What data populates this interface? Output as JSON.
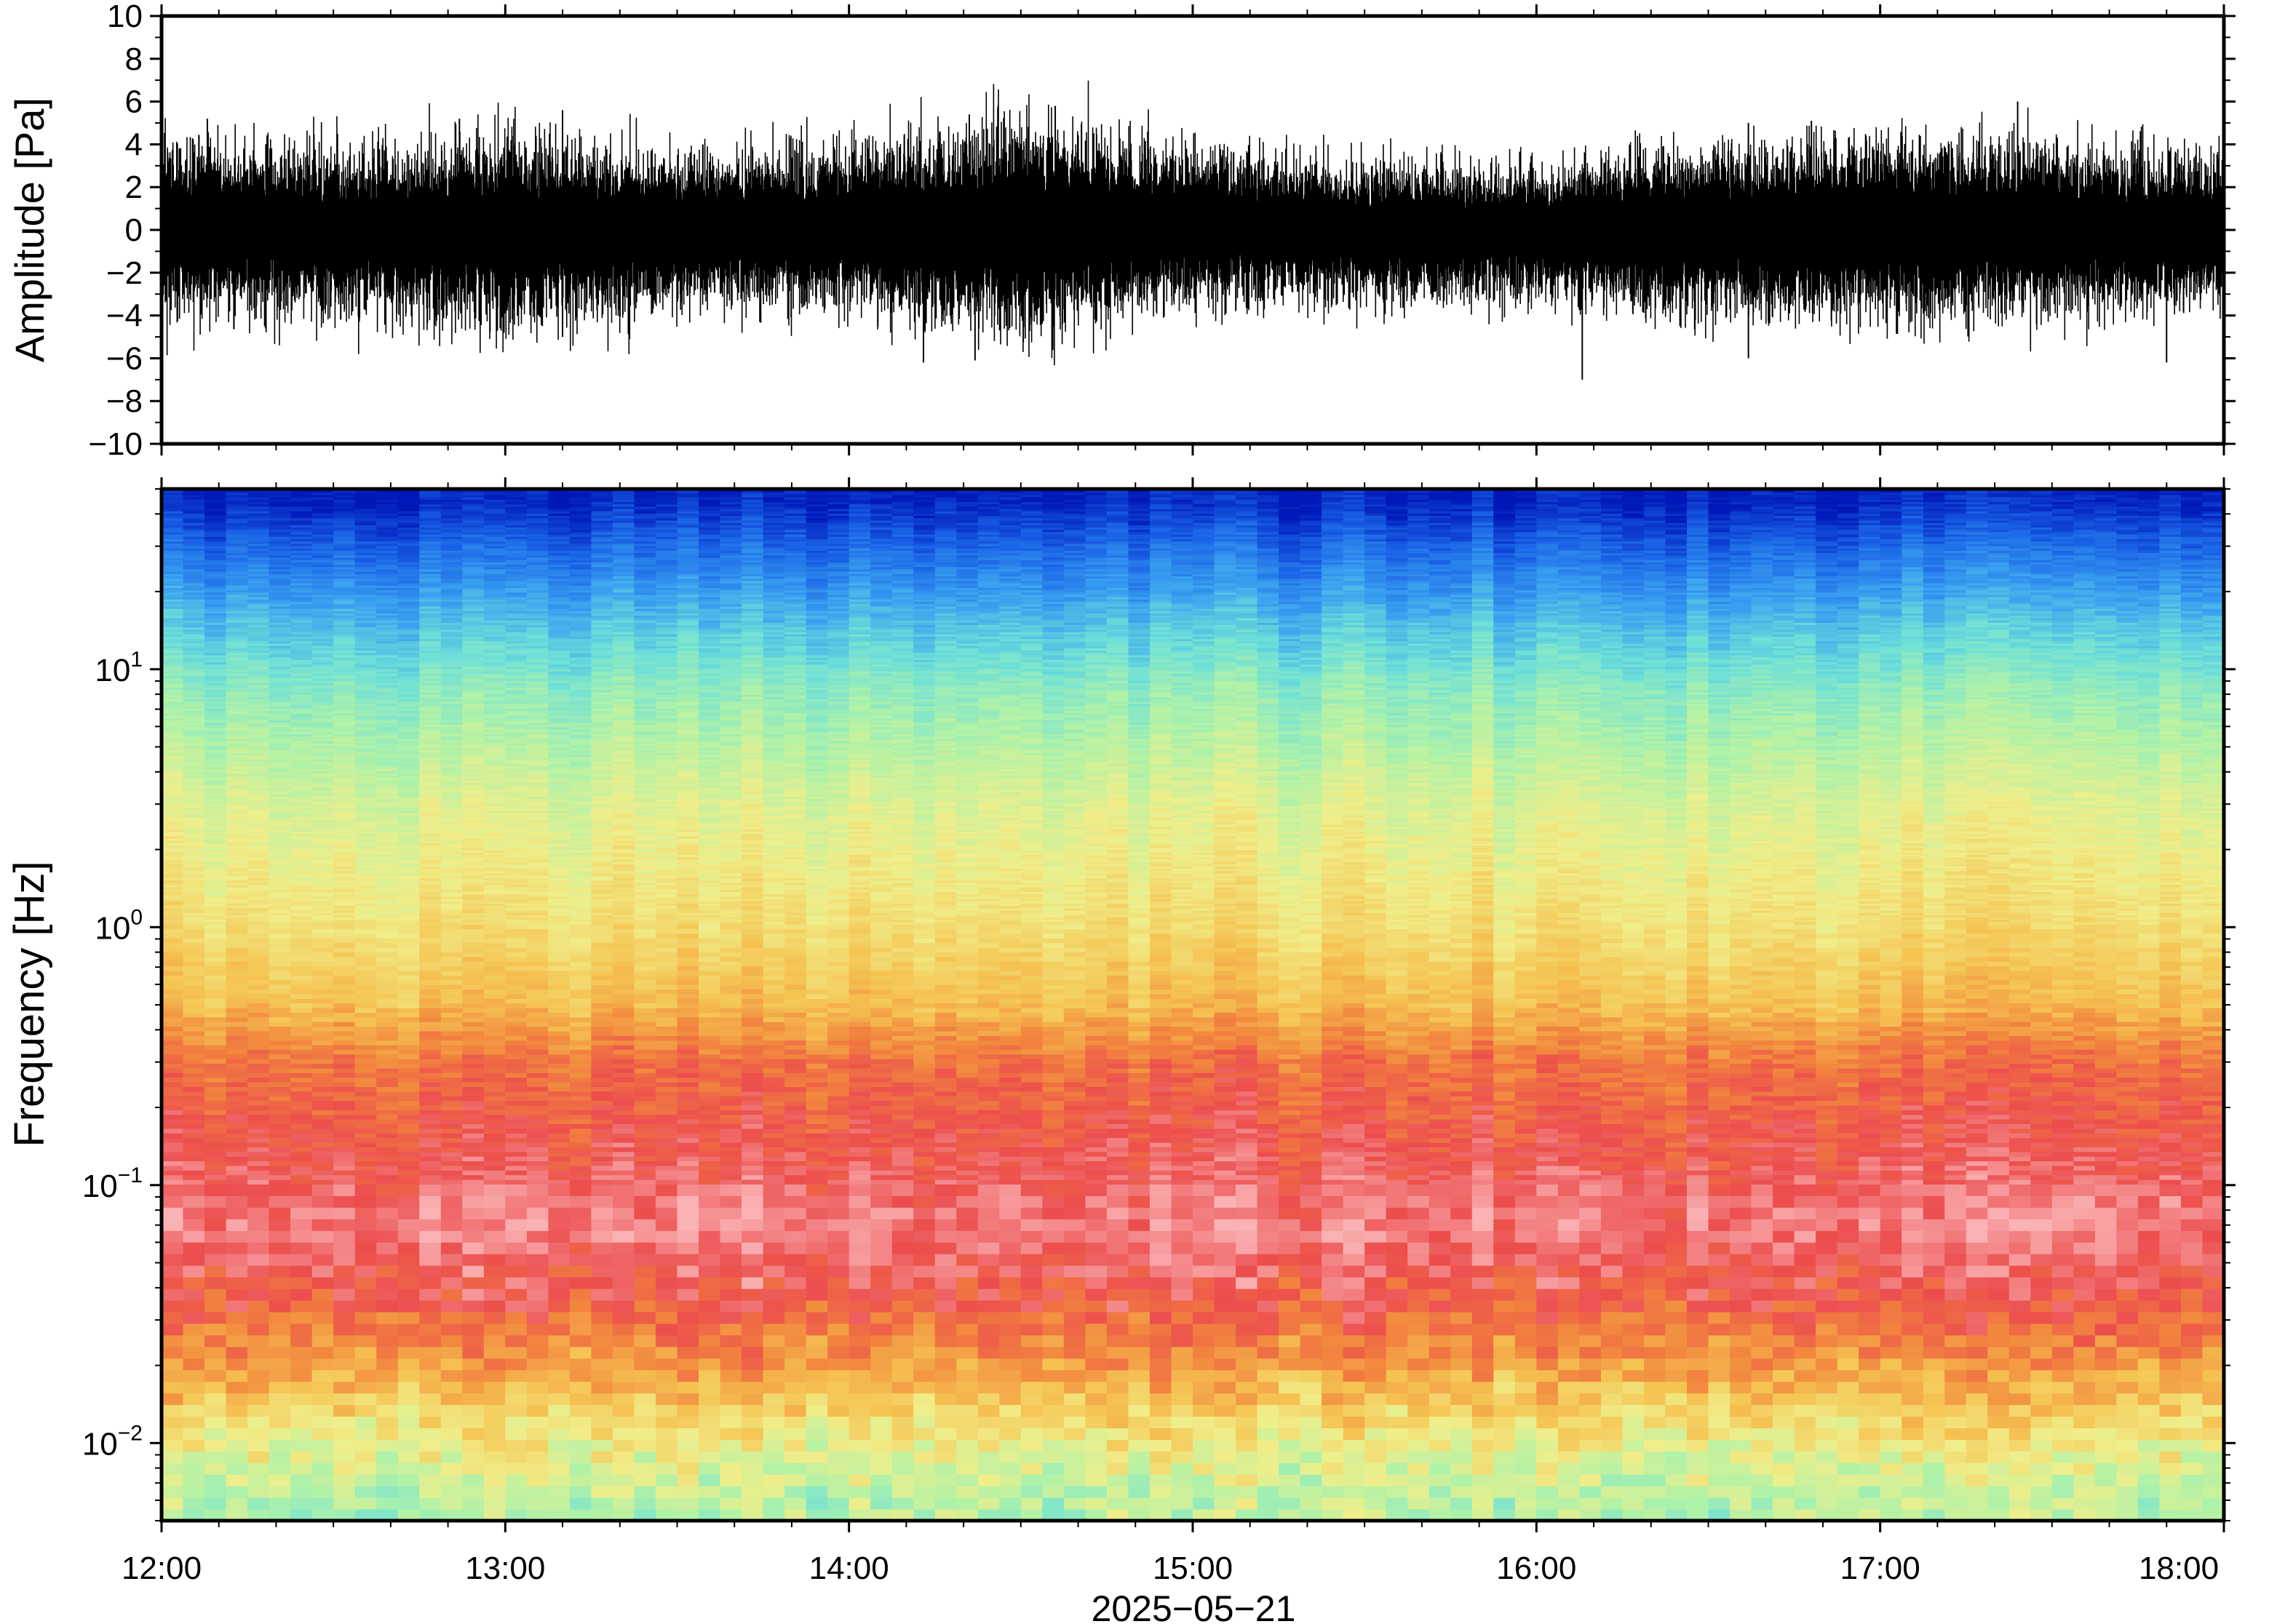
{
  "chart_data": [
    {
      "type": "line",
      "panel": "waveform",
      "ylabel": "Amplitude [Pa]",
      "ylim": [
        -10,
        10
      ],
      "yticks": [
        10,
        8,
        6,
        4,
        2,
        0,
        -2,
        -4,
        -6,
        -8,
        -10
      ],
      "ytick_labels": [
        "10",
        "8",
        "6",
        "4",
        "2",
        "0",
        "−2",
        "−4",
        "−6",
        "−8",
        "−10"
      ],
      "xlim": [
        "12:00",
        "18:00"
      ],
      "series": [
        {
          "color": "#000000",
          "summary": "continuous infrasound pressure trace, typical envelope about ±2.5 Pa",
          "envelope_hours": [
            12.0,
            12.5,
            13.0,
            13.5,
            14.0,
            14.5,
            15.0,
            15.5,
            16.0,
            16.5,
            17.0,
            17.5,
            18.0
          ],
          "envelope_upper": [
            2.8,
            2.6,
            3.0,
            2.4,
            2.6,
            3.6,
            2.6,
            2.2,
            2.0,
            2.6,
            3.0,
            2.7,
            2.4
          ],
          "envelope_lower": [
            -2.8,
            -2.6,
            -3.2,
            -2.4,
            -2.6,
            -3.4,
            -2.4,
            -2.2,
            -2.2,
            -2.8,
            -2.8,
            -2.6,
            -2.4
          ],
          "peaks": [
            {
              "time": "12:08",
              "value": 5.2
            },
            {
              "time": "12:18",
              "value": -4.5
            },
            {
              "time": "12:52",
              "value": 5.2
            },
            {
              "time": "13:10",
              "value": 5.6
            },
            {
              "time": "13:10",
              "value": -5.0
            },
            {
              "time": "14:13",
              "value": -6.2
            },
            {
              "time": "14:21",
              "value": 5.4
            },
            {
              "time": "14:22",
              "value": -6.1
            },
            {
              "time": "14:36",
              "value": 5.8
            },
            {
              "time": "16:08",
              "value": -7.0
            },
            {
              "time": "16:37",
              "value": 5.0
            },
            {
              "time": "16:37",
              "value": -6.0
            },
            {
              "time": "16:48",
              "value": 5.1
            },
            {
              "time": "17:24",
              "value": 6.0
            },
            {
              "time": "17:50",
              "value": -6.2
            }
          ]
        }
      ]
    },
    {
      "type": "heatmap",
      "panel": "spectrogram",
      "ylabel": "Frequency [Hz]",
      "yscale": "log",
      "ylim": [
        0.005,
        50
      ],
      "ytick_labels": [
        {
          "value": 0.01,
          "base": "10",
          "exp": "−2"
        },
        {
          "value": 0.1,
          "base": "10",
          "exp": "−1"
        },
        {
          "value": 1,
          "base": "10",
          "exp": "0"
        },
        {
          "value": 10,
          "base": "10",
          "exp": "1"
        }
      ],
      "xlabel": "2025−05−21",
      "xlim": [
        "12:00",
        "18:00"
      ],
      "xtick_labels": [
        "12:00",
        "13:00",
        "14:00",
        "15:00",
        "16:00",
        "17:00",
        "18:00"
      ],
      "colormap": {
        "colors": [
          "#0018b8",
          "#1a63e6",
          "#3aa2f0",
          "#6ee0d8",
          "#b0f2a8",
          "#f0ee8a",
          "#f5c453",
          "#f2883e",
          "#ec4d4d",
          "#fab2b4"
        ],
        "low_to_high": true
      },
      "time_bins": 96,
      "typical_band_levels": [
        {
          "freq_hz": 45,
          "level": 0.02
        },
        {
          "freq_hz": 30,
          "level": 0.12
        },
        {
          "freq_hz": 15,
          "level": 0.28
        },
        {
          "freq_hz": 8,
          "level": 0.4
        },
        {
          "freq_hz": 3,
          "level": 0.52
        },
        {
          "freq_hz": 1,
          "level": 0.6
        },
        {
          "freq_hz": 0.5,
          "level": 0.68
        },
        {
          "freq_hz": 0.3,
          "level": 0.82
        },
        {
          "freq_hz": 0.15,
          "level": 0.88
        },
        {
          "freq_hz": 0.07,
          "level": 0.95
        },
        {
          "freq_hz": 0.035,
          "level": 0.87
        },
        {
          "freq_hz": 0.02,
          "level": 0.74
        },
        {
          "freq_hz": 0.012,
          "level": 0.6
        },
        {
          "freq_hz": 0.006,
          "level": 0.46
        }
      ]
    }
  ]
}
